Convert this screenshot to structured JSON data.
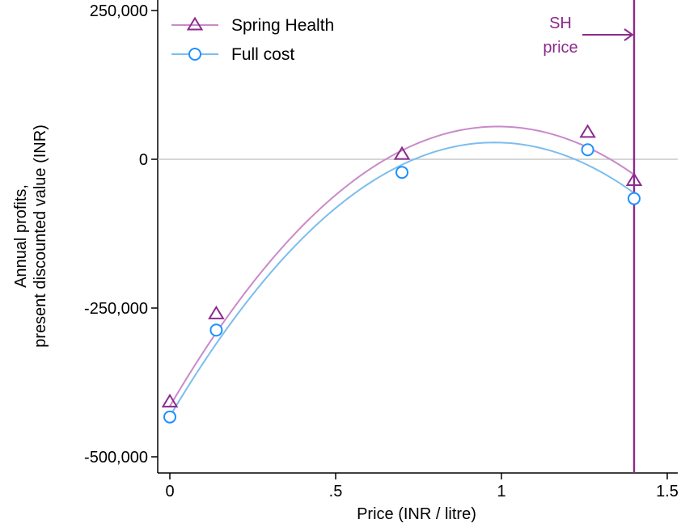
{
  "chart_data": {
    "type": "scatter",
    "title": "",
    "xlabel": "Price (INR / litre)",
    "ylabel_lines": [
      "Annual profits,",
      "present discounted value (INR)"
    ],
    "xlim": [
      -0.04,
      1.54
    ],
    "ylim": [
      -520000,
      250000
    ],
    "x_ticks": [
      {
        "value": 0,
        "label": "0"
      },
      {
        "value": 0.5,
        "label": ".5"
      },
      {
        "value": 1,
        "label": "1"
      },
      {
        "value": 1.5,
        "label": "1.5"
      }
    ],
    "y_ticks": [
      {
        "value": 250000,
        "label": "250,000"
      },
      {
        "value": 0,
        "label": "0"
      },
      {
        "value": -250000,
        "label": "-250,000"
      },
      {
        "value": -500000,
        "label": "-500,000"
      }
    ],
    "zero_line": {
      "y": 0,
      "color": "#c8c8c8"
    },
    "series": [
      {
        "name": "Spring Health",
        "marker": "triangle",
        "color": "#8c2a8c",
        "line_color": "#c98ac9",
        "points": [
          {
            "x": 0,
            "y": -408000
          },
          {
            "x": 0.14,
            "y": -260000
          },
          {
            "x": 0.7,
            "y": 8000
          },
          {
            "x": 1.26,
            "y": 45000
          },
          {
            "x": 1.4,
            "y": -36000
          }
        ],
        "fit": {
          "a": -480000,
          "b": 950000,
          "c": -415000
        }
      },
      {
        "name": "Full cost",
        "marker": "circle",
        "color": "#1e90ff",
        "line_color": "#7cbdee",
        "points": [
          {
            "x": 0,
            "y": -433000
          },
          {
            "x": 0.14,
            "y": -287000
          },
          {
            "x": 0.7,
            "y": -22000
          },
          {
            "x": 1.26,
            "y": 16000
          },
          {
            "x": 1.4,
            "y": -66000
          }
        ],
        "fit": {
          "a": -480000,
          "b": 940000,
          "c": -432000
        }
      }
    ],
    "vline": {
      "x": 1.4,
      "color": "#8c2a8c"
    },
    "annotation": {
      "lines": [
        "SH",
        "price"
      ],
      "color": "#8c2a8c",
      "arrow_to_x": 1.4
    },
    "legend_position": "top-left"
  }
}
